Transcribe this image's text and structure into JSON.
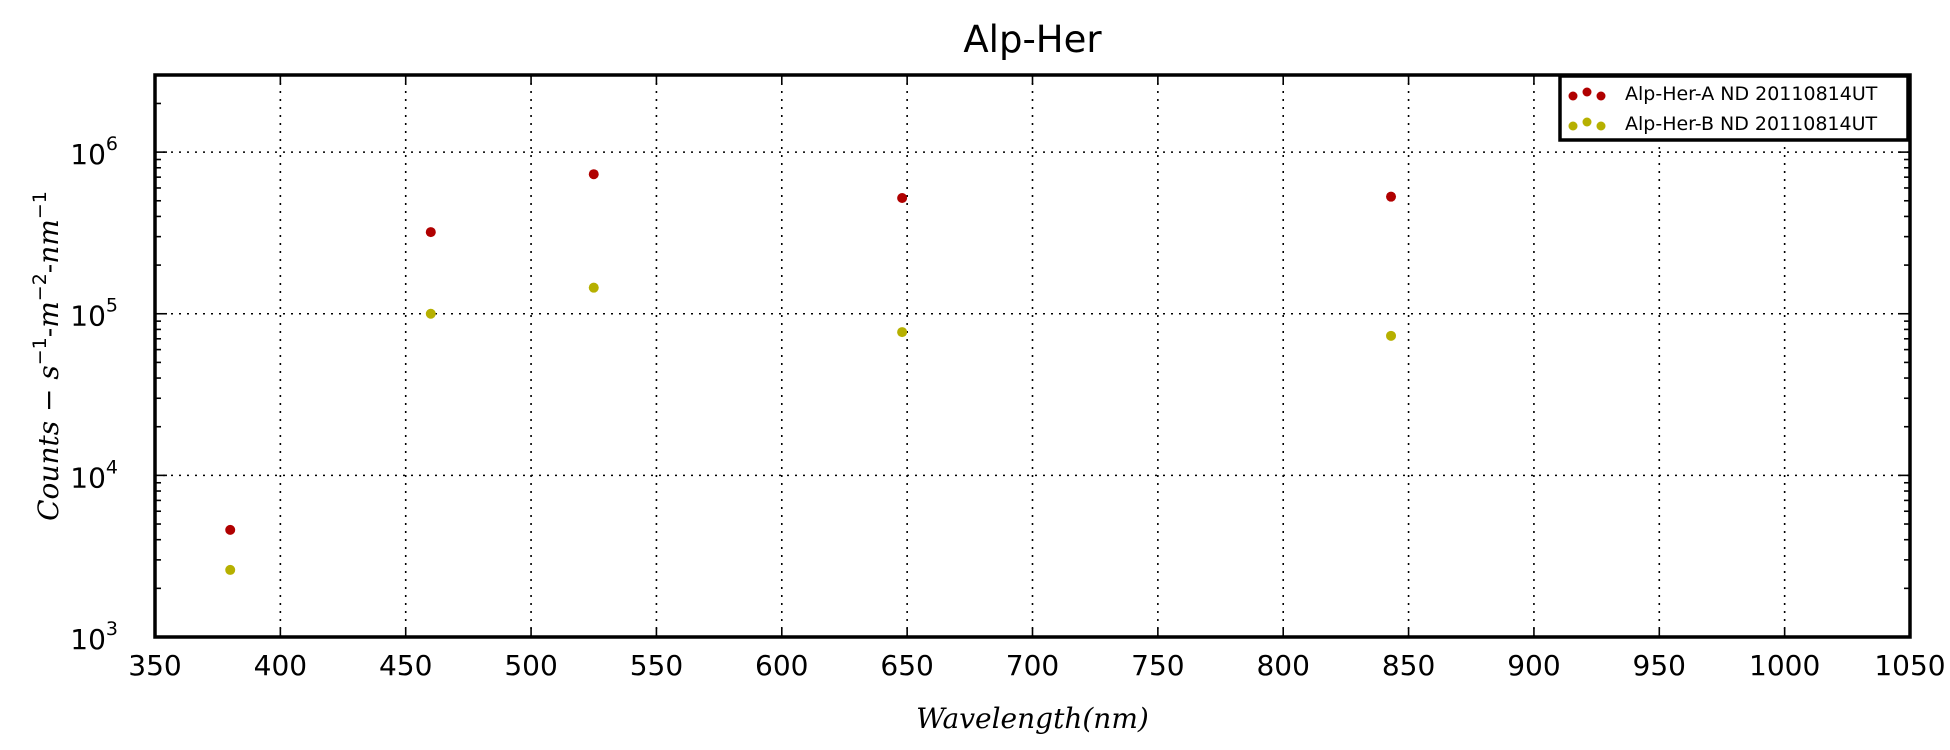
{
  "chart_data": {
    "type": "scatter",
    "title": "Alp-Her",
    "xlabel": "Wavelength(nm)",
    "ylabel": {
      "base": "Counts",
      "sep1": " − ",
      "s": "s",
      "s_exp": "−1",
      "sep2": "-",
      "m": "m",
      "m_exp": "−2",
      "sep3": "-",
      "nm": "nm",
      "nm_exp": "−1"
    },
    "xlim": [
      350,
      1050
    ],
    "ylim": [
      1000,
      3000000
    ],
    "yscale": "log",
    "grid": true,
    "legend_position": "top-right",
    "x_ticks": [
      "350",
      "400",
      "450",
      "500",
      "550",
      "600",
      "650",
      "700",
      "750",
      "800",
      "850",
      "900",
      "950",
      "1000",
      "1050"
    ],
    "y_ticks": [
      {
        "base": "10",
        "exp": "3"
      },
      {
        "base": "10",
        "exp": "4"
      },
      {
        "base": "10",
        "exp": "5"
      },
      {
        "base": "10",
        "exp": "6"
      }
    ],
    "series": [
      {
        "name": "Alp-Her-A ND 20110814UT",
        "color": "#b00000",
        "x": [
          380,
          460,
          525,
          648,
          843
        ],
        "y": [
          4600,
          320000,
          730000,
          520000,
          530000
        ]
      },
      {
        "name": "Alp-Her-B ND 20110814UT",
        "color": "#b6b000",
        "x": [
          380,
          460,
          525,
          648,
          843
        ],
        "y": [
          2600,
          100000,
          145000,
          77000,
          73000
        ]
      }
    ]
  }
}
